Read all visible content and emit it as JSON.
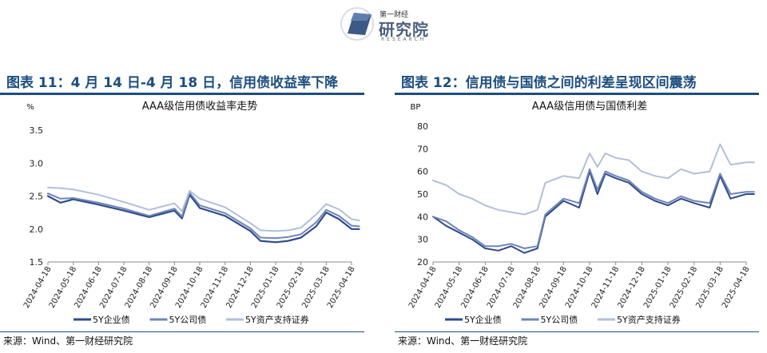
{
  "logo": {
    "top": "第一财经",
    "main": "研究院",
    "sub": "RESEARCH"
  },
  "source": "来源：Wind、第一财经研究院",
  "chart_data": [
    {
      "type": "line",
      "heading": "图表 11：4 月 14 日-4 月 18 日，信用债收益率下降",
      "title": "AAA级信用债收益率走势",
      "ylabel": "%",
      "ylim": [
        1.5,
        3.5
      ],
      "yticks": [
        "1.5",
        "2.0",
        "2.5",
        "3.0",
        "3.5"
      ],
      "xticks": [
        "2024-04-18",
        "2024-05-18",
        "2024-06-18",
        "2024-07-18",
        "2024-08-18",
        "2024-09-18",
        "2024-10-18",
        "2024-11-18",
        "2024-12-18",
        "2025-01-18",
        "2025-02-18",
        "2025-03-18",
        "2025-04-18"
      ],
      "legend": "bottom",
      "x_points": [
        0,
        0.5,
        1,
        2,
        3,
        4,
        5,
        5.3,
        5.6,
        6,
        7,
        8,
        8.4,
        9,
        9.5,
        10,
        10.6,
        11,
        11.5,
        12,
        12.3
      ],
      "series": [
        {
          "name": "5Y企业债",
          "color": "#2e4b8a",
          "width": 2.2,
          "values": [
            2.5,
            2.4,
            2.45,
            2.37,
            2.28,
            2.18,
            2.28,
            2.16,
            2.52,
            2.32,
            2.2,
            1.97,
            1.82,
            1.8,
            1.82,
            1.87,
            2.04,
            2.25,
            2.15,
            2.0,
            2.0
          ]
        },
        {
          "name": "5Y公司债",
          "color": "#6d85b8",
          "width": 2.0,
          "values": [
            2.54,
            2.46,
            2.47,
            2.4,
            2.31,
            2.2,
            2.31,
            2.19,
            2.55,
            2.36,
            2.24,
            2.01,
            1.87,
            1.86,
            1.88,
            1.92,
            2.1,
            2.29,
            2.2,
            2.05,
            2.04
          ]
        },
        {
          "name": "5Y资产支持证券",
          "color": "#b2bfda",
          "width": 2.0,
          "values": [
            2.63,
            2.62,
            2.6,
            2.52,
            2.41,
            2.29,
            2.39,
            2.27,
            2.58,
            2.46,
            2.33,
            2.09,
            1.98,
            1.97,
            1.98,
            2.02,
            2.22,
            2.38,
            2.3,
            2.15,
            2.13
          ]
        }
      ]
    },
    {
      "type": "line",
      "heading": "图表 12：信用债与国债之间的利差呈现区间震荡",
      "title": "AAA级信用债与国债利差",
      "ylabel": "BP",
      "ylim": [
        20,
        80
      ],
      "yticks": [
        "20",
        "30",
        "40",
        "50",
        "60",
        "70",
        "80"
      ],
      "xticks": [
        "2024-04-18",
        "2024-05-18",
        "2024-06-18",
        "2024-07-18",
        "2024-08-18",
        "2024-09-18",
        "2024-10-18",
        "2024-11-18",
        "2024-12-18",
        "2025-01-18",
        "2025-02-18",
        "2025-03-18",
        "2025-04-18"
      ],
      "legend": "bottom",
      "x_points": [
        0,
        0.5,
        1,
        1.5,
        2,
        2.5,
        3,
        3.5,
        4,
        4.3,
        5,
        5.6,
        6,
        6.3,
        6.6,
        7,
        7.5,
        8,
        8.5,
        9,
        9.5,
        10,
        10.6,
        11,
        11.4,
        12,
        12.3
      ],
      "series": [
        {
          "name": "5Y企业债",
          "color": "#2e4b8a",
          "width": 2.0,
          "values": [
            40,
            36,
            33,
            30,
            26,
            25,
            27,
            24,
            26,
            40,
            47,
            44,
            60,
            50,
            59,
            57,
            55,
            50,
            47,
            45,
            48,
            46,
            44,
            58,
            48,
            50,
            50
          ]
        },
        {
          "name": "5Y公司债",
          "color": "#6d85b8",
          "width": 2.0,
          "values": [
            40,
            38,
            34,
            31,
            27,
            27,
            28,
            26,
            27,
            41,
            48,
            46,
            61,
            52,
            60,
            58,
            56,
            51,
            48,
            46,
            49,
            47,
            46,
            59,
            50,
            51,
            51
          ]
        },
        {
          "name": "5Y资产支持证券",
          "color": "#b2bfda",
          "width": 2.0,
          "values": [
            56,
            54,
            50,
            48,
            45,
            43,
            42,
            41,
            43,
            55,
            58,
            57,
            68,
            62,
            68,
            66,
            65,
            60,
            58,
            57,
            61,
            59,
            60,
            72,
            63,
            64,
            64
          ]
        }
      ]
    }
  ]
}
